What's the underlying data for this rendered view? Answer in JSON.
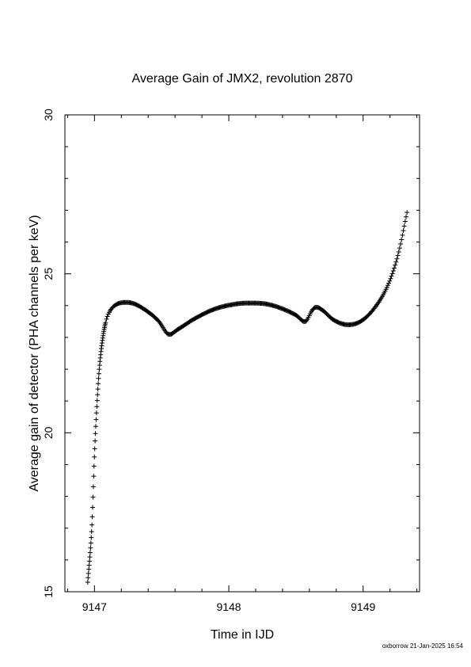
{
  "chart_data": {
    "type": "scatter",
    "title": "Average Gain of JMX2, revolution 2870",
    "xlabel": "Time in IJD",
    "ylabel": "Average gain of detector (PHA channels per keV)",
    "xlim": [
      9146.78,
      9149.42
    ],
    "ylim": [
      15,
      30
    ],
    "xticks": [
      9147,
      9148,
      9149
    ],
    "yticks": [
      15,
      20,
      25,
      30
    ],
    "grid": false,
    "marker": "+",
    "curve_knots": [
      [
        9146.95,
        15.3
      ],
      [
        9146.98,
        17.0
      ],
      [
        9147.0,
        19.3
      ],
      [
        9147.02,
        21.0
      ],
      [
        9147.04,
        22.2
      ],
      [
        9147.07,
        23.2
      ],
      [
        9147.1,
        23.7
      ],
      [
        9147.15,
        24.0
      ],
      [
        9147.22,
        24.1
      ],
      [
        9147.3,
        24.05
      ],
      [
        9147.4,
        23.8
      ],
      [
        9147.48,
        23.5
      ],
      [
        9147.55,
        23.1
      ],
      [
        9147.62,
        23.25
      ],
      [
        9147.75,
        23.6
      ],
      [
        9147.9,
        23.9
      ],
      [
        9148.05,
        24.05
      ],
      [
        9148.15,
        24.08
      ],
      [
        9148.28,
        24.05
      ],
      [
        9148.4,
        23.9
      ],
      [
        9148.5,
        23.7
      ],
      [
        9148.57,
        23.5
      ],
      [
        9148.62,
        23.85
      ],
      [
        9148.65,
        23.95
      ],
      [
        9148.7,
        23.85
      ],
      [
        9148.78,
        23.55
      ],
      [
        9148.88,
        23.4
      ],
      [
        9148.98,
        23.5
      ],
      [
        9149.08,
        23.9
      ],
      [
        9149.18,
        24.6
      ],
      [
        9149.26,
        25.6
      ],
      [
        9149.33,
        27.0
      ]
    ],
    "sparse_until": 9147.08,
    "sparse_step": 0.0026,
    "dense_step": 0.0068
  },
  "footer": {
    "credit": "oxborrow 21-Jan-2025 16:54"
  }
}
